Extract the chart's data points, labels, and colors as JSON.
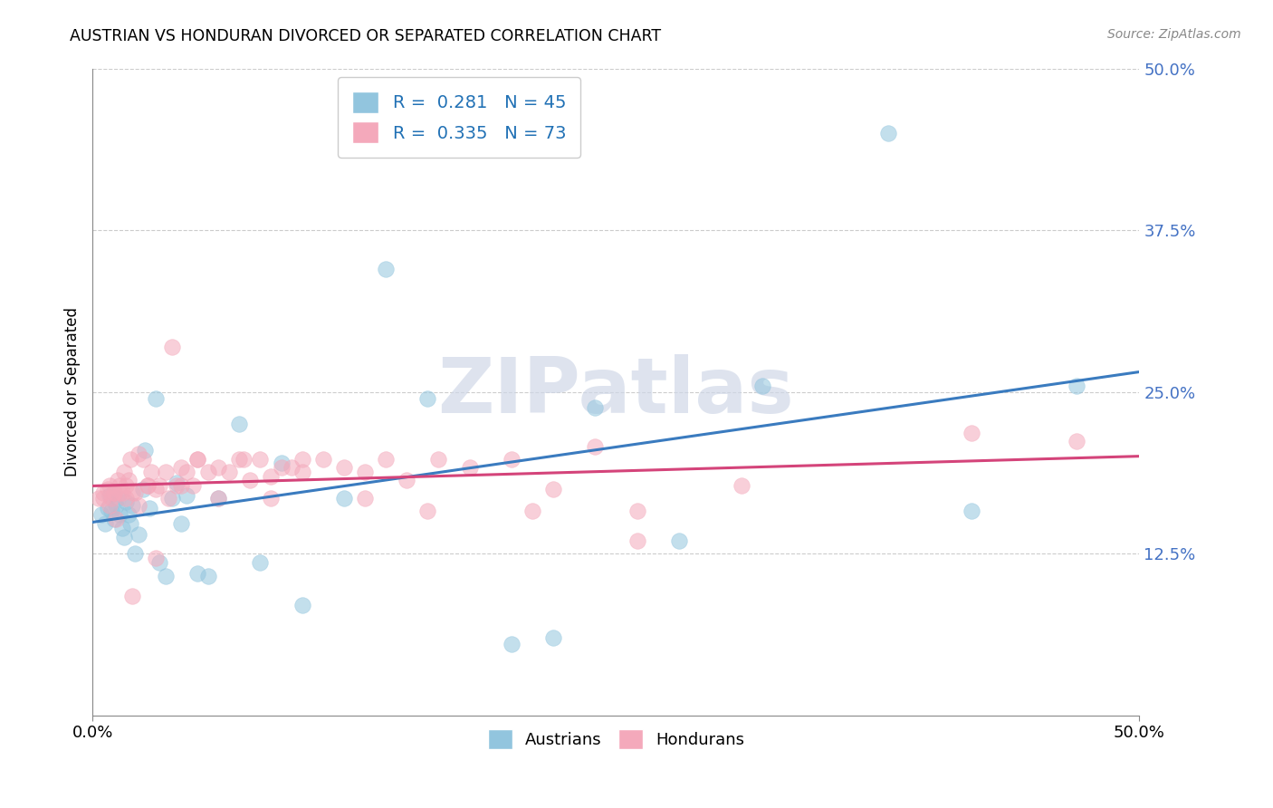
{
  "title": "AUSTRIAN VS HONDURAN DIVORCED OR SEPARATED CORRELATION CHART",
  "source": "Source: ZipAtlas.com",
  "ylabel": "Divorced or Separated",
  "xlabel_austrians": "Austrians",
  "xlabel_hondurans": "Hondurans",
  "xlim": [
    0.0,
    0.5
  ],
  "ylim": [
    0.0,
    0.5
  ],
  "xtick_vals": [
    0.0,
    0.5
  ],
  "xtick_labels": [
    "0.0%",
    "50.0%"
  ],
  "ytick_vals": [
    0.125,
    0.25,
    0.375,
    0.5
  ],
  "ytick_labels": [
    "12.5%",
    "25.0%",
    "37.5%",
    "50.0%"
  ],
  "legend_R_blue": "R =  0.281",
  "legend_N_blue": "N = 45",
  "legend_R_pink": "R =  0.335",
  "legend_N_pink": "N = 73",
  "blue_color": "#92c5de",
  "pink_color": "#f4a9bb",
  "blue_line_color": "#3a7bbf",
  "pink_line_color": "#d4447a",
  "watermark": "ZIPatlas",
  "austrians_x": [
    0.004,
    0.006,
    0.007,
    0.008,
    0.009,
    0.01,
    0.011,
    0.012,
    0.013,
    0.014,
    0.015,
    0.016,
    0.017,
    0.018,
    0.019,
    0.02,
    0.022,
    0.024,
    0.025,
    0.027,
    0.03,
    0.032,
    0.035,
    0.038,
    0.04,
    0.042,
    0.045,
    0.05,
    0.055,
    0.06,
    0.07,
    0.08,
    0.09,
    0.1,
    0.12,
    0.14,
    0.16,
    0.2,
    0.22,
    0.24,
    0.28,
    0.32,
    0.38,
    0.42,
    0.47
  ],
  "austrians_y": [
    0.155,
    0.148,
    0.16,
    0.17,
    0.158,
    0.152,
    0.162,
    0.168,
    0.155,
    0.145,
    0.138,
    0.165,
    0.155,
    0.148,
    0.162,
    0.125,
    0.14,
    0.175,
    0.205,
    0.16,
    0.245,
    0.118,
    0.108,
    0.168,
    0.18,
    0.148,
    0.17,
    0.11,
    0.108,
    0.168,
    0.225,
    0.118,
    0.195,
    0.085,
    0.168,
    0.345,
    0.245,
    0.055,
    0.06,
    0.238,
    0.135,
    0.255,
    0.45,
    0.158,
    0.255
  ],
  "hondurans_x": [
    0.003,
    0.005,
    0.007,
    0.008,
    0.009,
    0.01,
    0.011,
    0.012,
    0.013,
    0.014,
    0.015,
    0.016,
    0.017,
    0.018,
    0.019,
    0.02,
    0.022,
    0.024,
    0.026,
    0.028,
    0.03,
    0.032,
    0.035,
    0.038,
    0.04,
    0.042,
    0.045,
    0.048,
    0.05,
    0.055,
    0.06,
    0.065,
    0.07,
    0.075,
    0.08,
    0.085,
    0.09,
    0.095,
    0.1,
    0.11,
    0.12,
    0.13,
    0.14,
    0.15,
    0.165,
    0.18,
    0.2,
    0.22,
    0.24,
    0.26,
    0.005,
    0.008,
    0.01,
    0.013,
    0.016,
    0.019,
    0.022,
    0.026,
    0.03,
    0.036,
    0.042,
    0.05,
    0.06,
    0.072,
    0.085,
    0.1,
    0.13,
    0.16,
    0.21,
    0.26,
    0.31,
    0.42,
    0.47
  ],
  "hondurans_y": [
    0.168,
    0.172,
    0.175,
    0.162,
    0.168,
    0.172,
    0.152,
    0.182,
    0.178,
    0.172,
    0.188,
    0.178,
    0.182,
    0.198,
    0.172,
    0.172,
    0.202,
    0.198,
    0.178,
    0.188,
    0.175,
    0.178,
    0.188,
    0.285,
    0.178,
    0.192,
    0.188,
    0.178,
    0.198,
    0.188,
    0.192,
    0.188,
    0.198,
    0.182,
    0.198,
    0.185,
    0.192,
    0.192,
    0.198,
    0.198,
    0.192,
    0.188,
    0.198,
    0.182,
    0.198,
    0.192,
    0.198,
    0.175,
    0.208,
    0.135,
    0.168,
    0.178,
    0.172,
    0.172,
    0.168,
    0.092,
    0.162,
    0.178,
    0.122,
    0.168,
    0.178,
    0.198,
    0.168,
    0.198,
    0.168,
    0.188,
    0.168,
    0.158,
    0.158,
    0.158,
    0.178,
    0.218,
    0.212
  ]
}
